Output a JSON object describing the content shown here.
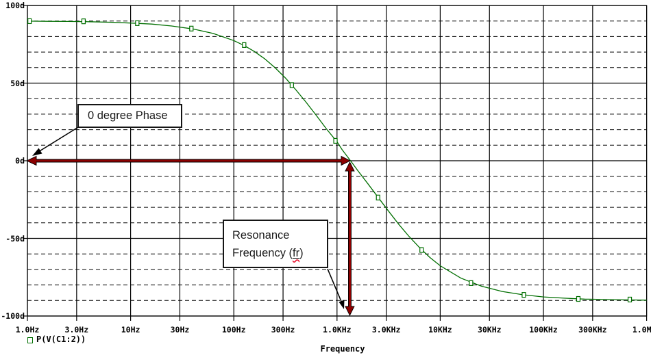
{
  "chart_data": {
    "type": "line",
    "title": "",
    "xlabel": "Frequency",
    "x_scale": "log",
    "x_range_hz": [
      1,
      1000000
    ],
    "y_range_deg": [
      -100,
      100
    ],
    "grid": {
      "major_solid": true,
      "minor_deg_step": 10,
      "minor_style": "dashed"
    },
    "y_ticks": [
      {
        "value": 100,
        "label": "100d"
      },
      {
        "value": 50,
        "label": "50d"
      },
      {
        "value": 0,
        "label": "0d"
      },
      {
        "value": -50,
        "label": "-50d"
      },
      {
        "value": -100,
        "label": "-100d"
      }
    ],
    "x_ticks": [
      {
        "hz": 1,
        "label": "1.0Hz"
      },
      {
        "hz": 3,
        "label": "3.0Hz"
      },
      {
        "hz": 10,
        "label": "10Hz"
      },
      {
        "hz": 30,
        "label": "30Hz"
      },
      {
        "hz": 100,
        "label": "100Hz"
      },
      {
        "hz": 300,
        "label": "300Hz"
      },
      {
        "hz": 1000,
        "label": "1.0KHz"
      },
      {
        "hz": 3000,
        "label": "3.0KHz"
      },
      {
        "hz": 10000,
        "label": "10KHz"
      },
      {
        "hz": 30000,
        "label": "30KHz"
      },
      {
        "hz": 100000,
        "label": "100KHz"
      },
      {
        "hz": 300000,
        "label": "300KHz"
      },
      {
        "hz": 1000000,
        "label": "1.0MHz"
      }
    ],
    "series": [
      {
        "name": "P(V(C1:2))",
        "color": "#006e00",
        "points": [
          [
            1,
            89.9
          ],
          [
            1.6,
            89.8
          ],
          [
            2.5,
            89.7
          ],
          [
            4,
            89.5
          ],
          [
            6.3,
            89.2
          ],
          [
            10,
            88.7
          ],
          [
            16,
            88.0
          ],
          [
            25,
            86.8
          ],
          [
            40,
            84.9
          ],
          [
            63,
            82.0
          ],
          [
            100,
            77.4
          ],
          [
            126,
            74.2
          ],
          [
            158,
            70.4
          ],
          [
            200,
            65.6
          ],
          [
            251,
            59.9
          ],
          [
            316,
            53.3
          ],
          [
            398,
            45.8
          ],
          [
            501,
            37.7
          ],
          [
            631,
            29.1
          ],
          [
            794,
            20.3
          ],
          [
            1000,
            12.2
          ],
          [
            1122,
            7.1
          ],
          [
            1259,
            2.7
          ],
          [
            1413,
            -1.7
          ],
          [
            1585,
            -6.2
          ],
          [
            1995,
            -14.9
          ],
          [
            2512,
            -23.7
          ],
          [
            3162,
            -32.5
          ],
          [
            3981,
            -41.1
          ],
          [
            5012,
            -48.9
          ],
          [
            6310,
            -56.0
          ],
          [
            7943,
            -62.3
          ],
          [
            10000,
            -67.6
          ],
          [
            15849,
            -75.6
          ],
          [
            25119,
            -80.8
          ],
          [
            39811,
            -84.2
          ],
          [
            63096,
            -86.3
          ],
          [
            100000,
            -87.7
          ],
          [
            158489,
            -88.5
          ],
          [
            251189,
            -89.1
          ],
          [
            398107,
            -89.4
          ],
          [
            630957,
            -89.6
          ],
          [
            1000000,
            -89.8
          ]
        ],
        "marker_points": [
          [
            1.05,
            89.9
          ],
          [
            3.5,
            89.8
          ],
          [
            11.6,
            88.6
          ],
          [
            38.8,
            85.1
          ],
          [
            126,
            74.5
          ],
          [
            365,
            48.7
          ],
          [
            966,
            12.8
          ],
          [
            2500,
            -23.7
          ],
          [
            6600,
            -57.5
          ],
          [
            19900,
            -78.8
          ],
          [
            64600,
            -86.4
          ],
          [
            218000,
            -89.0
          ],
          [
            687000,
            -89.4
          ]
        ]
      }
    ],
    "reference_markers": {
      "zero_phase_level_deg": 0,
      "resonance_frequency_hz": 1330
    }
  },
  "legend": {
    "swatch": "green-square-marker",
    "label": "P(V(C1:2))"
  },
  "axis_title": "Frequency",
  "callouts": {
    "phase_note": {
      "text": "0 degree Phase"
    },
    "resonance_note": {
      "line1": "Resonance",
      "line2_prefix": "Frequency (",
      "line2_term": "fr",
      "line2_suffix": ")"
    }
  },
  "colors": {
    "trace": "#006e00",
    "measure_arrow": "#8b0000",
    "grid": "#000000",
    "background": "#ffffff",
    "spellcheck_squiggle": "#e8112d"
  }
}
